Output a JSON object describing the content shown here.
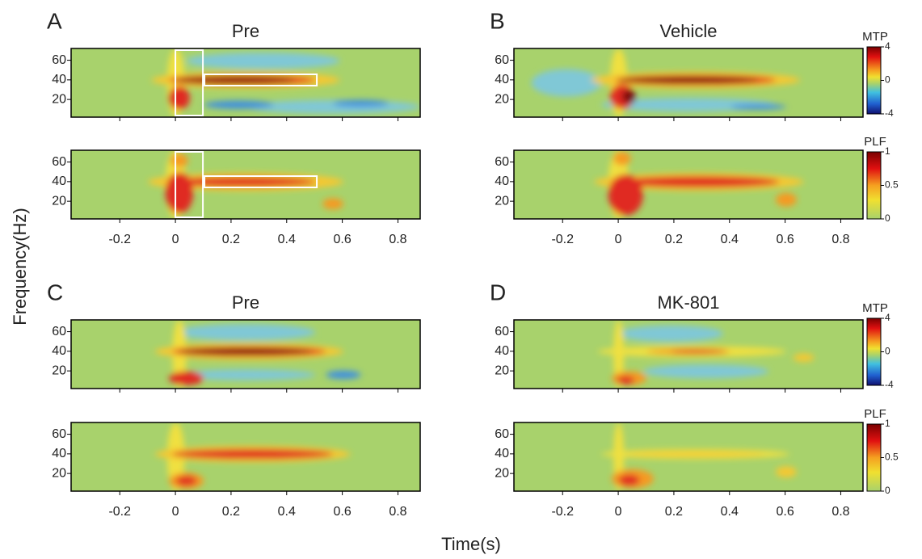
{
  "chart_data": {
    "type": "heatmap",
    "x_label": "Time(s)",
    "y_label": "Frequency(Hz)",
    "panels": [
      {
        "letter": "A",
        "title": "Pre"
      },
      {
        "letter": "B",
        "title": "Vehicle"
      },
      {
        "letter": "C",
        "title": "Pre"
      },
      {
        "letter": "D",
        "title": "MK-801"
      }
    ],
    "xlim": [
      -0.375,
      0.88
    ],
    "xticks": [
      -0.2,
      0,
      0.2,
      0.4,
      0.6,
      0.8
    ],
    "ylim": [
      2,
      72
    ],
    "yticks": [
      20,
      40,
      60
    ],
    "colorbars": [
      {
        "label": "MTP",
        "lim": [
          -4,
          4
        ],
        "ticks": [
          -4,
          0,
          4
        ]
      },
      {
        "label": "PLF",
        "lim": [
          0,
          1
        ],
        "ticks": [
          0,
          0.5,
          1
        ]
      }
    ]
  }
}
